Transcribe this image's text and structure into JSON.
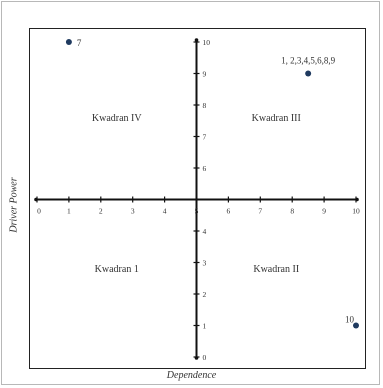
{
  "chart_data": {
    "type": "scatter",
    "title": "",
    "xlabel": "Dependence",
    "ylabel": "Driver Power",
    "xlim": [
      0,
      10
    ],
    "ylim": [
      0,
      10
    ],
    "x_ticks": [
      0,
      1,
      2,
      3,
      4,
      5,
      6,
      7,
      8,
      9,
      10
    ],
    "y_ticks": [
      0,
      1,
      2,
      3,
      4,
      5,
      6,
      7,
      8,
      9,
      10
    ],
    "grid": false,
    "marker_color": "#1f3a5f",
    "points": [
      {
        "label": "7",
        "x": 1,
        "y": 10
      },
      {
        "label": "1, 2,3,4,5,6,8,9",
        "x": 8.5,
        "y": 9
      },
      {
        "label": "10",
        "x": 10,
        "y": 1
      }
    ],
    "quadrants": [
      {
        "label": "Kwadran IV",
        "x": 2.5,
        "y": 7.5
      },
      {
        "label": "Kwadran III",
        "x": 7.5,
        "y": 7.5
      },
      {
        "label": "Kwadran 1",
        "x": 2.5,
        "y": 2.7
      },
      {
        "label": "Kwadran II",
        "x": 7.5,
        "y": 2.7
      }
    ]
  }
}
